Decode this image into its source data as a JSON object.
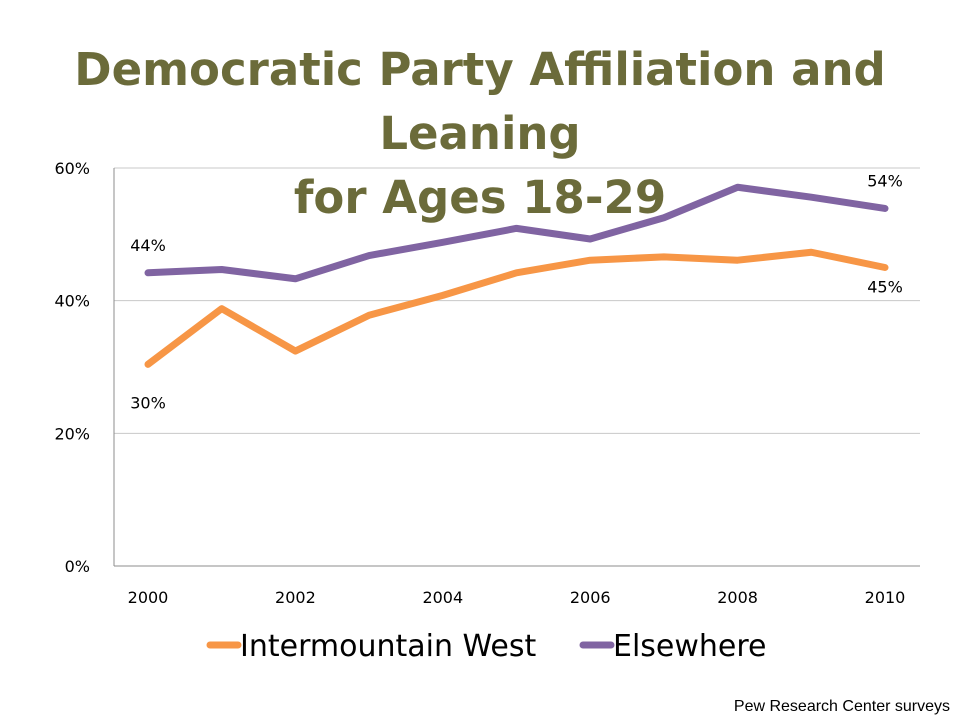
{
  "chart_data": {
    "type": "line",
    "title_lines": [
      "Democratic Party Affiliation and Leaning",
      "for Ages 18-29"
    ],
    "x": [
      2000,
      2001,
      2002,
      2003,
      2004,
      2005,
      2006,
      2007,
      2008,
      2009,
      2010
    ],
    "x_ticks": [
      "2000",
      "2002",
      "2004",
      "2006",
      "2008",
      "2010"
    ],
    "y_ticks": [
      "0%",
      "20%",
      "40%",
      "60%"
    ],
    "ylim": [
      0,
      60
    ],
    "grid": true,
    "legend_position": "bottom",
    "series": [
      {
        "name": "Intermountain West",
        "color": "#f79646",
        "values": [
          30.4,
          38.8,
          32.4,
          37.8,
          40.8,
          44.2,
          46.1,
          46.6,
          46.1,
          47.3,
          45.0
        ],
        "labels": [
          {
            "index": 0,
            "text": "30%"
          },
          {
            "index": 10,
            "text": "45%"
          }
        ]
      },
      {
        "name": "Elsewhere",
        "color": "#8064a2",
        "values": [
          44.2,
          44.7,
          43.3,
          46.8,
          48.8,
          50.9,
          49.3,
          52.5,
          57.1,
          55.6,
          53.9
        ],
        "labels": [
          {
            "index": 0,
            "text": "44%"
          },
          {
            "index": 10,
            "text": "54%"
          }
        ]
      }
    ]
  },
  "source_note": "Pew Research Center surveys"
}
